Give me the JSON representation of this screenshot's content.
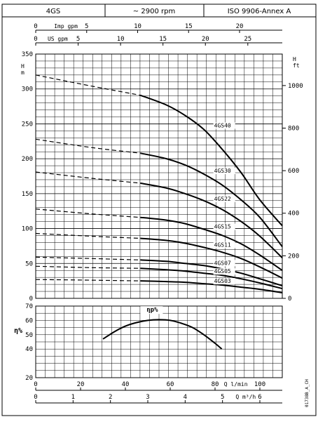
{
  "header": {
    "model": "4GS",
    "speed": "~ 2900 rpm",
    "standard": "ISO 9906-Annex A"
  },
  "code": "01738B_A_CH",
  "chart_data": [
    {
      "type": "line",
      "name": "head",
      "ylabel_left": "H m",
      "ylabel_right": "H ft",
      "ylim": [
        0,
        350
      ],
      "yticks_left": [
        0,
        50,
        100,
        150,
        200,
        250,
        300,
        350
      ],
      "ylim_ft": [
        0,
        1148
      ],
      "yticks_right": [
        0,
        200,
        400,
        600,
        800,
        1000
      ],
      "top_axis_imp": {
        "label": "Imp gpm",
        "ticks": [
          0,
          5,
          10,
          15,
          20
        ]
      },
      "top_axis_us": {
        "label": "US gpm",
        "ticks": [
          0,
          5,
          10,
          15,
          20,
          25
        ]
      },
      "series": [
        {
          "name": "4GS40",
          "label_at": [
            5.0,
            245
          ],
          "dashed": [
            [
              0,
              320
            ],
            [
              1.5,
              304
            ],
            [
              2.8,
              291
            ]
          ],
          "solid": [
            [
              2.8,
              291
            ],
            [
              3.5,
              277
            ],
            [
              4.0,
              262
            ],
            [
              4.5,
              242
            ],
            [
              5.0,
              213
            ],
            [
              5.5,
              180
            ],
            [
              6.0,
              141
            ],
            [
              6.6,
              104
            ]
          ]
        },
        {
          "name": "4GS30",
          "label_at": [
            5.0,
            180
          ],
          "dashed": [
            [
              0,
              228
            ],
            [
              1.5,
              216
            ],
            [
              2.8,
              208
            ]
          ],
          "solid": [
            [
              2.8,
              208
            ],
            [
              3.5,
              200
            ],
            [
              4.0,
              191
            ],
            [
              4.5,
              178
            ],
            [
              5.0,
              162
            ],
            [
              5.5,
              141
            ],
            [
              6.0,
              116
            ],
            [
              6.6,
              74
            ]
          ]
        },
        {
          "name": "4GS22",
          "label_at": [
            5.0,
            140
          ],
          "dashed": [
            [
              0,
              181
            ],
            [
              1.5,
              172
            ],
            [
              2.8,
              165
            ]
          ],
          "solid": [
            [
              2.8,
              165
            ],
            [
              3.5,
              158
            ],
            [
              4.0,
              150
            ],
            [
              4.5,
              140
            ],
            [
              5.0,
              127
            ],
            [
              5.5,
              110
            ],
            [
              6.0,
              89
            ],
            [
              6.6,
              58
            ]
          ]
        },
        {
          "name": "4GS15",
          "label_at": [
            5.0,
            100
          ],
          "dashed": [
            [
              0,
              128
            ],
            [
              1.5,
              121
            ],
            [
              2.8,
              116
            ]
          ],
          "solid": [
            [
              2.8,
              116
            ],
            [
              3.5,
              112
            ],
            [
              4.0,
              107
            ],
            [
              4.5,
              99
            ],
            [
              5.0,
              90
            ],
            [
              5.5,
              78
            ],
            [
              6.0,
              62
            ],
            [
              6.6,
              40
            ]
          ]
        },
        {
          "name": "4GS11",
          "label_at": [
            5.0,
            74
          ],
          "dashed": [
            [
              0,
              93
            ],
            [
              1.5,
              89
            ],
            [
              2.8,
              86
            ]
          ],
          "solid": [
            [
              2.8,
              86
            ],
            [
              3.5,
              83
            ],
            [
              4.0,
              79
            ],
            [
              4.5,
              73
            ],
            [
              5.0,
              66
            ],
            [
              5.5,
              57
            ],
            [
              6.0,
              45
            ],
            [
              6.6,
              29
            ]
          ]
        },
        {
          "name": "4GS07",
          "label_at": [
            5.0,
            48
          ],
          "dashed": [
            [
              0,
              59
            ],
            [
              1.5,
              57
            ],
            [
              2.8,
              55
            ]
          ],
          "solid": [
            [
              2.8,
              55
            ],
            [
              3.5,
              53
            ],
            [
              4.0,
              50
            ],
            [
              4.5,
              47
            ],
            [
              5.0,
              42
            ],
            [
              5.5,
              36
            ],
            [
              6.0,
              28
            ],
            [
              6.6,
              18
            ]
          ]
        },
        {
          "name": "4GS05",
          "label_at": [
            5.0,
            36
          ],
          "dashed": [
            [
              0,
              46
            ],
            [
              1.5,
              44
            ],
            [
              2.8,
              43
            ]
          ],
          "solid": [
            [
              2.8,
              43
            ],
            [
              3.5,
              41
            ],
            [
              4.0,
              39
            ],
            [
              4.5,
              36
            ],
            [
              5.0,
              33
            ],
            [
              5.5,
              28
            ],
            [
              6.0,
              22
            ],
            [
              6.6,
              14
            ]
          ]
        },
        {
          "name": "4GS03",
          "label_at": [
            5.0,
            22
          ],
          "dashed": [
            [
              0,
              27
            ],
            [
              1.5,
              26
            ],
            [
              2.8,
              25
            ]
          ],
          "solid": [
            [
              2.8,
              25
            ],
            [
              3.5,
              24
            ],
            [
              4.0,
              23
            ],
            [
              4.5,
              21
            ],
            [
              5.0,
              19
            ],
            [
              5.5,
              16
            ],
            [
              6.0,
              13
            ],
            [
              6.6,
              8
            ]
          ]
        }
      ]
    },
    {
      "type": "line",
      "name": "efficiency",
      "ylabel": "η%",
      "ylim": [
        20,
        70
      ],
      "yticks": [
        20,
        40,
        50,
        60,
        70
      ],
      "x_bottom_lmin": {
        "label": "Q l/min",
        "ticks": [
          0,
          20,
          40,
          60,
          80,
          100
        ]
      },
      "x_bottom_m3h": {
        "label": "Q m³/h",
        "ticks": [
          0,
          1,
          2,
          3,
          4,
          5,
          6
        ]
      },
      "series": [
        {
          "name": "ηp%",
          "points": [
            [
              30,
              47
            ],
            [
              35,
              52
            ],
            [
              40,
              56
            ],
            [
              45,
              58.5
            ],
            [
              50,
              60
            ],
            [
              55,
              60.5
            ],
            [
              60,
              60
            ],
            [
              65,
              58
            ],
            [
              70,
              55
            ],
            [
              75,
              50
            ],
            [
              80,
              44
            ],
            [
              83,
              40
            ]
          ]
        }
      ]
    }
  ]
}
